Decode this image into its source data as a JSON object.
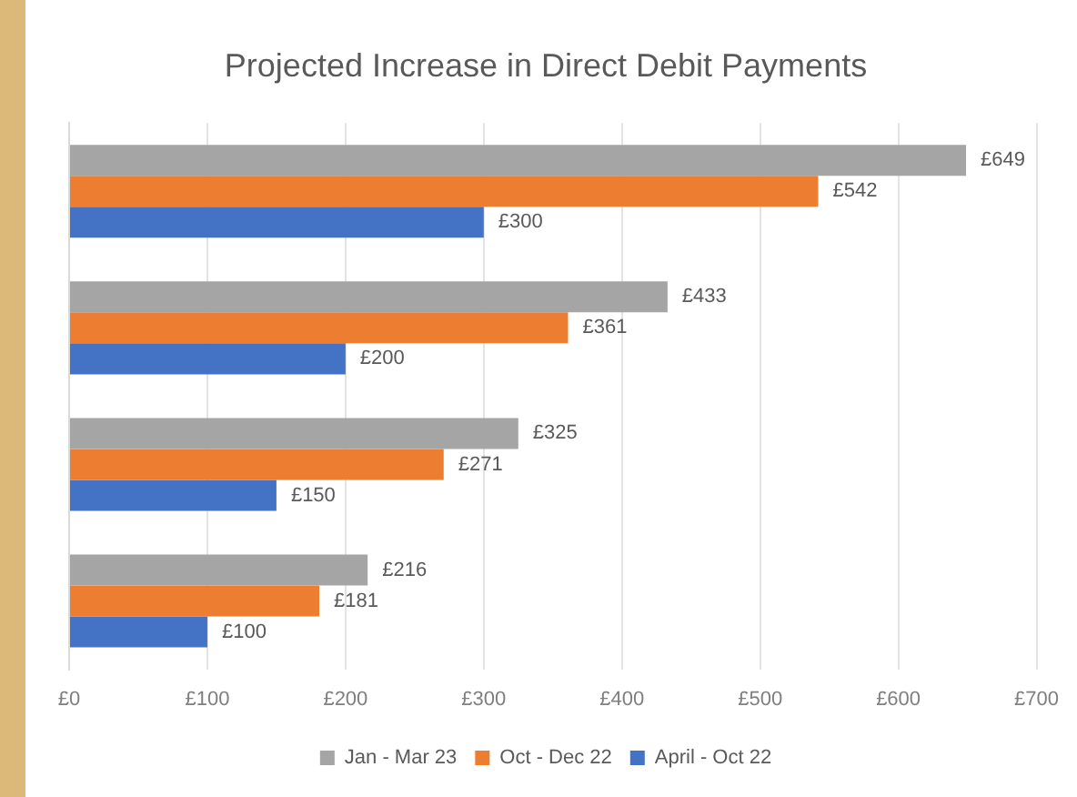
{
  "chart_data": {
    "type": "bar",
    "orientation": "horizontal",
    "title": "Projected Increase in Direct Debit Payments",
    "categories": [
      null,
      null,
      null,
      null
    ],
    "series": [
      {
        "name": "Jan - Mar 23",
        "color": "#a5a5a5",
        "values": [
          649,
          433,
          325,
          216
        ],
        "value_labels": [
          "£649",
          "£433",
          "£325",
          "£216"
        ]
      },
      {
        "name": "Oct - Dec 22",
        "color": "#ed7d31",
        "values": [
          542,
          361,
          271,
          181
        ],
        "value_labels": [
          "£542",
          "£361",
          "£271",
          "£181"
        ]
      },
      {
        "name": "April - Oct 22",
        "color": "#4472c4",
        "values": [
          300,
          200,
          150,
          100
        ],
        "value_labels": [
          "£300",
          "£200",
          "£150",
          "£100"
        ]
      }
    ],
    "xlim": [
      0,
      700
    ],
    "xticks": [
      {
        "value": 0,
        "label": "£0"
      },
      {
        "value": 100,
        "label": "£100"
      },
      {
        "value": 200,
        "label": "£200"
      },
      {
        "value": 300,
        "label": "£300"
      },
      {
        "value": 400,
        "label": "£400"
      },
      {
        "value": 500,
        "label": "£500"
      },
      {
        "value": 600,
        "label": "£600"
      },
      {
        "value": 700,
        "label": "£700"
      }
    ],
    "grid": "x",
    "legend": "bottom"
  }
}
